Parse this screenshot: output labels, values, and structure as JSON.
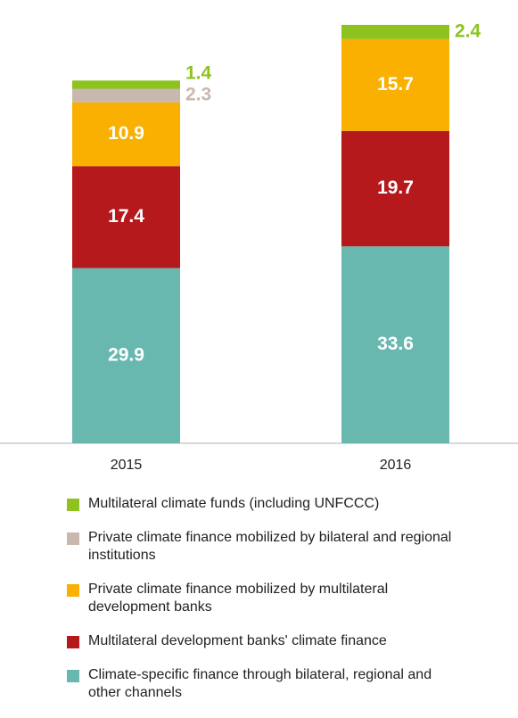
{
  "chart_data": {
    "type": "stacked-bar",
    "categories": [
      "2015",
      "2016"
    ],
    "series": [
      {
        "name": "Multilateral climate funds (including UNFCCC)",
        "color": "#8dc21f",
        "values": [
          1.4,
          2.4
        ]
      },
      {
        "name": "Private climate finance mobilized by bilateral and regional institutions",
        "color": "#c9b8b0",
        "values": [
          2.3,
          null
        ]
      },
      {
        "name": "Private climate finance mobilized by multilateral development banks",
        "color": "#f9b000",
        "values": [
          10.9,
          15.7
        ]
      },
      {
        "name": "Multilateral development banks' climate finance",
        "color": "#b5191c",
        "values": [
          17.4,
          19.7
        ]
      },
      {
        "name": "Climate-specific finance through bilateral, regional and other channels",
        "color": "#69b8b0",
        "values": [
          29.9,
          33.6
        ]
      }
    ]
  }
}
